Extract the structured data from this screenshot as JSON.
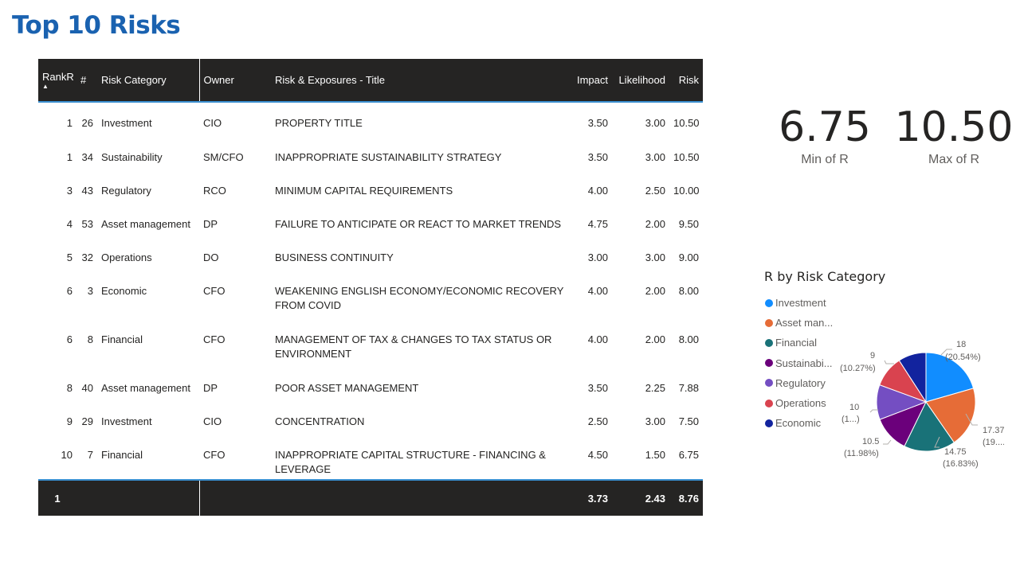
{
  "page": {
    "title": "Top 10 Risks"
  },
  "table": {
    "columns": {
      "rank": "RankR",
      "num": "#",
      "category": "Risk Category",
      "owner": "Owner",
      "title": "Risk & Exposures - Title",
      "impact": "Impact",
      "likelihood": "Likelihood",
      "risk": "Risk"
    },
    "sort_indicator": "▲",
    "rows": [
      {
        "rank": "1",
        "num": "26",
        "category": "Investment",
        "owner": "CIO",
        "title": "PROPERTY TITLE",
        "impact": "3.50",
        "likelihood": "3.00",
        "risk": "10.50"
      },
      {
        "rank": "1",
        "num": "34",
        "category": "Sustainability",
        "owner": "SM/CFO",
        "title": "INAPPROPRIATE SUSTAINABILITY STRATEGY",
        "impact": "3.50",
        "likelihood": "3.00",
        "risk": "10.50"
      },
      {
        "rank": "3",
        "num": "43",
        "category": "Regulatory",
        "owner": "RCO",
        "title": "MINIMUM CAPITAL REQUIREMENTS",
        "impact": "4.00",
        "likelihood": "2.50",
        "risk": "10.00"
      },
      {
        "rank": "4",
        "num": "53",
        "category": "Asset management",
        "owner": "DP",
        "title": "FAILURE TO ANTICIPATE OR REACT TO MARKET TRENDS",
        "impact": "4.75",
        "likelihood": "2.00",
        "risk": "9.50"
      },
      {
        "rank": "5",
        "num": "32",
        "category": "Operations",
        "owner": "DO",
        "title": "BUSINESS CONTINUITY",
        "impact": "3.00",
        "likelihood": "3.00",
        "risk": "9.00"
      },
      {
        "rank": "6",
        "num": "3",
        "category": "Economic",
        "owner": "CFO",
        "title": "WEAKENING ENGLISH ECONOMY/ECONOMIC RECOVERY FROM COVID",
        "impact": "4.00",
        "likelihood": "2.00",
        "risk": "8.00"
      },
      {
        "rank": "6",
        "num": "8",
        "category": "Financial",
        "owner": "CFO",
        "title": "MANAGEMENT OF TAX & CHANGES TO TAX STATUS OR ENVIRONMENT",
        "impact": "4.00",
        "likelihood": "2.00",
        "risk": "8.00"
      },
      {
        "rank": "8",
        "num": "40",
        "category": "Asset management",
        "owner": "DP",
        "title": "POOR ASSET MANAGEMENT",
        "impact": "3.50",
        "likelihood": "2.25",
        "risk": "7.88"
      },
      {
        "rank": "9",
        "num": "29",
        "category": "Investment",
        "owner": "CIO",
        "title": "CONCENTRATION",
        "impact": "2.50",
        "likelihood": "3.00",
        "risk": "7.50"
      },
      {
        "rank": "10",
        "num": "7",
        "category": "Financial",
        "owner": "CFO",
        "title": "INAPPROPRIATE CAPITAL STRUCTURE - FINANCING & LEVERAGE",
        "impact": "4.50",
        "likelihood": "1.50",
        "risk": "6.75"
      }
    ],
    "totals": {
      "rank": "1",
      "impact": "3.73",
      "likelihood": "2.43",
      "risk": "8.76"
    }
  },
  "kpis": {
    "min": {
      "value": "6.75",
      "label": "Min of R"
    },
    "max": {
      "value": "10.50",
      "label": "Max of R"
    }
  },
  "pie": {
    "title": "R by Risk Category",
    "legend": [
      {
        "label": "Investment",
        "color": "#118dff"
      },
      {
        "label": "Asset man...",
        "color": "#e66c37"
      },
      {
        "label": "Financial",
        "color": "#197278"
      },
      {
        "label": "Sustainabi...",
        "color": "#6b007b"
      },
      {
        "label": "Regulatory",
        "color": "#744ec2"
      },
      {
        "label": "Operations",
        "color": "#d9434f"
      },
      {
        "label": "Economic",
        "color": "#12239e"
      }
    ],
    "slice_labels": [
      {
        "value": "18",
        "pct": "(20.54%)"
      },
      {
        "value": "17.375",
        "pct": "(19....)"
      },
      {
        "value": "14.75",
        "pct": "(16.83%)"
      },
      {
        "value": "10.5",
        "pct": "(11.98%)"
      },
      {
        "value": "10",
        "pct": "(1...)"
      },
      {
        "value": "9",
        "pct": "(10.27%)"
      }
    ]
  },
  "chart_data": {
    "type": "pie",
    "title": "R by Risk Category",
    "categories": [
      "Investment",
      "Asset management",
      "Financial",
      "Sustainability",
      "Regulatory",
      "Operations",
      "Economic"
    ],
    "values": [
      18,
      17.375,
      14.75,
      10.5,
      10,
      9,
      8
    ],
    "colors": [
      "#118dff",
      "#e66c37",
      "#197278",
      "#6b007b",
      "#744ec2",
      "#d9434f",
      "#12239e"
    ],
    "legend_position": "left"
  }
}
